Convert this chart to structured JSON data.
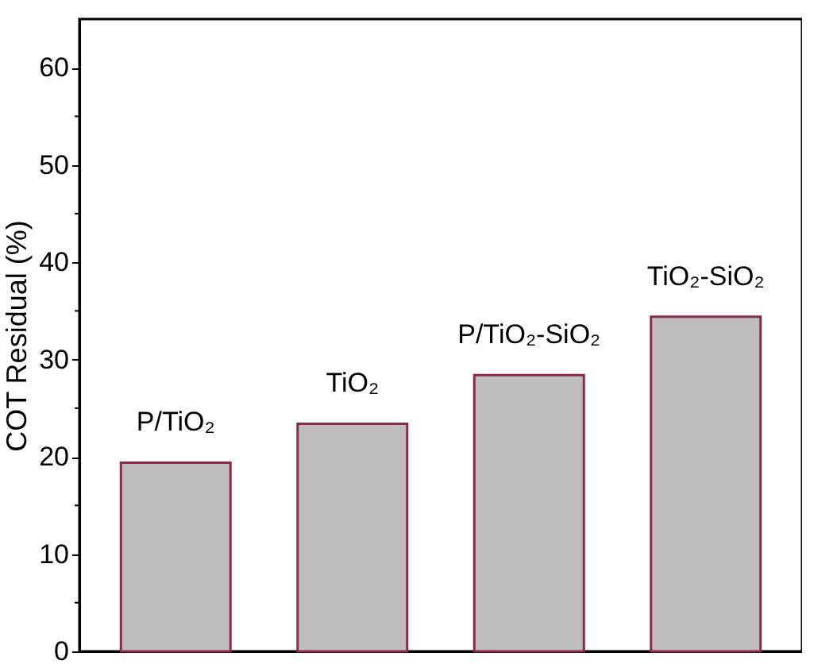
{
  "chart_data": {
    "type": "bar",
    "ylabel": "COT Residual (%)",
    "categories": [
      "P/TiO₂",
      "TiO₂",
      "P/TiO₂-SiO₂",
      "TiO₂-SiO₂"
    ],
    "values": [
      19.4,
      23.4,
      28.4,
      34.4
    ],
    "color": "#bebebe",
    "ylim": [
      0,
      65
    ],
    "yticks": [
      0,
      {
        "value": 5,
        "label": null
      },
      10,
      {
        "value": 15,
        "label": null
      },
      20,
      {
        "value": 25,
        "label": null
      },
      30,
      {
        "value": 35,
        "label": null
      },
      40,
      {
        "value": 45,
        "label": null
      },
      50,
      {
        "value": 55,
        "label": null
      },
      60
    ],
    "tick_labels": "y",
    "grid": false
  }
}
